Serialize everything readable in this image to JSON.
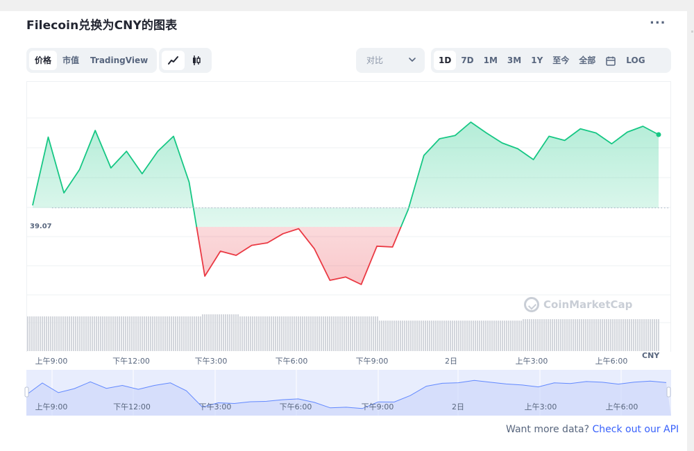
{
  "header": {
    "title": "Filecoin兑换为CNY的图表",
    "more_label": "..."
  },
  "toolbar": {
    "view_tabs": [
      {
        "label": "价格",
        "active": true
      },
      {
        "label": "市值",
        "active": false
      },
      {
        "label": "TradingView",
        "active": false
      }
    ],
    "chart_types": [
      {
        "icon": "line-chart-icon",
        "active": true
      },
      {
        "icon": "candlestick-icon",
        "active": false
      }
    ],
    "compare": {
      "placeholder": "对比",
      "icon": "chevron-down-icon"
    },
    "ranges": [
      {
        "label": "1D",
        "active": true
      },
      {
        "label": "7D",
        "active": false
      },
      {
        "label": "1M",
        "active": false
      },
      {
        "label": "3M",
        "active": false
      },
      {
        "label": "1Y",
        "active": false
      },
      {
        "label": "至今",
        "active": false
      },
      {
        "label": "全部",
        "active": false
      }
    ],
    "calendar_icon": "calendar-icon",
    "log_label": "LOG"
  },
  "chart_data": {
    "type": "line",
    "title": "",
    "ylabel": "CNY",
    "reference_value": 39.07,
    "reference_label": "39.07",
    "x_tick_labels": [
      "上午9:00",
      "下午12:00",
      "下午3:00",
      "下午6:00",
      "下午9:00",
      "2日",
      "上午3:00",
      "上午6:00"
    ],
    "x_hours": [
      0,
      1,
      2,
      3,
      4,
      5,
      6,
      7,
      8,
      9,
      10,
      11,
      12,
      13,
      14,
      15,
      16,
      17,
      18,
      19,
      20,
      21,
      22,
      23,
      24
    ],
    "price": [
      39.1,
      39.92,
      39.25,
      39.53,
      40.0,
      39.55,
      39.75,
      39.48,
      39.75,
      39.93,
      39.38,
      38.25,
      38.55,
      38.5,
      38.62,
      38.65,
      38.76,
      38.82,
      38.58,
      38.2,
      38.24,
      38.15,
      38.61,
      38.6,
      39.05
    ],
    "series_tail_hours": [
      24,
      25,
      26,
      27,
      28,
      29,
      30,
      31,
      32,
      33,
      34,
      35,
      36,
      37,
      38,
      39,
      40
    ],
    "series_tail": [
      39.05,
      39.7,
      39.9,
      39.94,
      40.1,
      39.97,
      39.85,
      39.78,
      39.65,
      39.93,
      39.88,
      40.02,
      39.97,
      39.84,
      39.98,
      40.05,
      39.95
    ],
    "volume_note": "",
    "up_color": "#16c784",
    "down_color": "#ea3943",
    "navigator_color": "#6188ff",
    "ylim": [
      37.9,
      40.4
    ],
    "grid": true,
    "brand_watermark": "CoinMarketCap"
  },
  "footer": {
    "text": "Want more data?",
    "link": "Check out our API"
  }
}
